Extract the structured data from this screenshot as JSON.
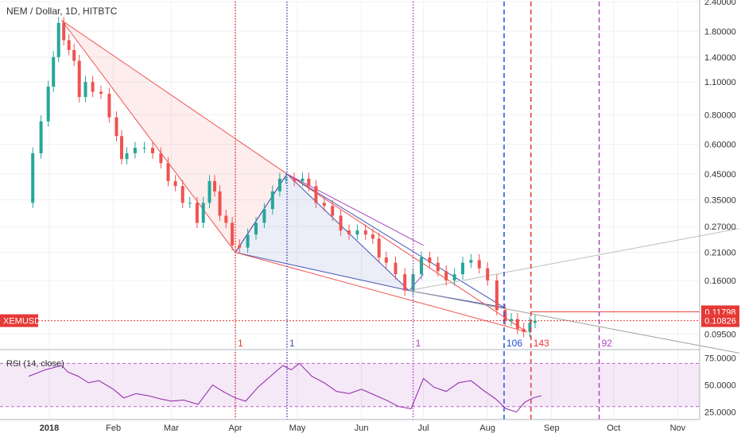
{
  "chart_data": {
    "type": "candlestick",
    "title": "NEM / Dollar, 1D, HITBTC",
    "symbol_tag": "XEMUSD",
    "scale": "log",
    "price_axis": {
      "ticks": [
        "2.40000",
        "1.80000",
        "1.40000",
        "1.10000",
        "0.80000",
        "0.60000",
        "0.45000",
        "0.35000",
        "0.27000",
        "0.21000",
        "0.16000",
        "0.09500"
      ],
      "ylim": [
        0.083,
        2.4
      ]
    },
    "time_axis": {
      "ticks": [
        "2018",
        "Feb",
        "Mar",
        "Apr",
        "May",
        "Jun",
        "Jul",
        "Aug",
        "Sep",
        "Oct",
        "Nov"
      ]
    },
    "price_labels": [
      {
        "value": 0.11798,
        "text": "0.11798",
        "color": "#e53935"
      },
      {
        "value": 0.10826,
        "text": "0.10826",
        "color": "#e53935"
      }
    ],
    "price_path": [
      [
        "2017-12-22",
        0.34
      ],
      [
        "2017-12-26",
        0.55
      ],
      [
        "2017-12-30",
        0.75
      ],
      [
        "2018-01-02",
        1.05
      ],
      [
        "2018-01-04",
        1.4
      ],
      [
        "2018-01-07",
        1.95
      ],
      [
        "2018-01-09",
        1.65
      ],
      [
        "2018-01-12",
        1.5
      ],
      [
        "2018-01-14",
        1.35
      ],
      [
        "2018-01-17",
        0.95
      ],
      [
        "2018-01-20",
        1.1
      ],
      [
        "2018-01-24",
        1.0
      ],
      [
        "2018-01-28",
        0.98
      ],
      [
        "2018-02-01",
        0.78
      ],
      [
        "2018-02-04",
        0.65
      ],
      [
        "2018-02-06",
        0.52
      ],
      [
        "2018-02-09",
        0.55
      ],
      [
        "2018-02-14",
        0.58
      ],
      [
        "2018-02-18",
        0.58
      ],
      [
        "2018-02-22",
        0.55
      ],
      [
        "2018-02-26",
        0.5
      ],
      [
        "2018-03-01",
        0.42
      ],
      [
        "2018-03-05",
        0.4
      ],
      [
        "2018-03-08",
        0.34
      ],
      [
        "2018-03-12",
        0.34
      ],
      [
        "2018-03-15",
        0.28
      ],
      [
        "2018-03-18",
        0.34
      ],
      [
        "2018-03-21",
        0.42
      ],
      [
        "2018-03-23",
        0.38
      ],
      [
        "2018-03-26",
        0.3
      ],
      [
        "2018-03-29",
        0.28
      ],
      [
        "2018-04-01",
        0.225
      ],
      [
        "2018-04-05",
        0.22
      ],
      [
        "2018-04-09",
        0.25
      ],
      [
        "2018-04-13",
        0.28
      ],
      [
        "2018-04-17",
        0.32
      ],
      [
        "2018-04-21",
        0.38
      ],
      [
        "2018-04-24",
        0.43
      ],
      [
        "2018-04-27",
        0.43
      ],
      [
        "2018-05-02",
        0.42
      ],
      [
        "2018-05-05",
        0.43
      ],
      [
        "2018-05-08",
        0.4
      ],
      [
        "2018-05-12",
        0.34
      ],
      [
        "2018-05-16",
        0.33
      ],
      [
        "2018-05-20",
        0.3
      ],
      [
        "2018-05-24",
        0.26
      ],
      [
        "2018-05-28",
        0.25
      ],
      [
        "2018-06-01",
        0.26
      ],
      [
        "2018-06-05",
        0.25
      ],
      [
        "2018-06-08",
        0.24
      ],
      [
        "2018-06-11",
        0.2
      ],
      [
        "2018-06-15",
        0.19
      ],
      [
        "2018-06-20",
        0.17
      ],
      [
        "2018-06-24",
        0.145
      ],
      [
        "2018-06-28",
        0.17
      ],
      [
        "2018-07-02",
        0.2
      ],
      [
        "2018-07-06",
        0.19
      ],
      [
        "2018-07-10",
        0.175
      ],
      [
        "2018-07-14",
        0.16
      ],
      [
        "2018-07-18",
        0.17
      ],
      [
        "2018-07-22",
        0.19
      ],
      [
        "2018-07-26",
        0.195
      ],
      [
        "2018-07-30",
        0.18
      ],
      [
        "2018-08-03",
        0.16
      ],
      [
        "2018-08-08",
        0.12
      ],
      [
        "2018-08-11",
        0.108
      ],
      [
        "2018-08-14",
        0.11
      ],
      [
        "2018-08-17",
        0.1
      ],
      [
        "2018-08-20",
        0.097
      ],
      [
        "2018-08-23",
        0.106
      ],
      [
        "2018-08-25",
        0.108
      ]
    ],
    "rsi": {
      "label": "RSI (14, close)",
      "ticks": [
        "75.0000",
        "50.0000",
        "25.0000"
      ],
      "ylim": [
        18,
        82
      ],
      "band": [
        30,
        70
      ],
      "values": [
        [
          "2017-12-22",
          58
        ],
        [
          "2017-12-30",
          64
        ],
        [
          "2018-01-07",
          68
        ],
        [
          "2018-01-10",
          62
        ],
        [
          "2018-01-15",
          58
        ],
        [
          "2018-01-20",
          52
        ],
        [
          "2018-01-25",
          54
        ],
        [
          "2018-02-01",
          46
        ],
        [
          "2018-02-06",
          38
        ],
        [
          "2018-02-12",
          42
        ],
        [
          "2018-02-18",
          40
        ],
        [
          "2018-02-24",
          37
        ],
        [
          "2018-03-01",
          35
        ],
        [
          "2018-03-07",
          36
        ],
        [
          "2018-03-14",
          32
        ],
        [
          "2018-03-21",
          50
        ],
        [
          "2018-03-26",
          44
        ],
        [
          "2018-04-01",
          38
        ],
        [
          "2018-04-06",
          35
        ],
        [
          "2018-04-12",
          48
        ],
        [
          "2018-04-18",
          58
        ],
        [
          "2018-04-24",
          68
        ],
        [
          "2018-04-28",
          64
        ],
        [
          "2018-05-02",
          70
        ],
        [
          "2018-05-08",
          58
        ],
        [
          "2018-05-14",
          52
        ],
        [
          "2018-05-20",
          44
        ],
        [
          "2018-05-26",
          42
        ],
        [
          "2018-06-01",
          46
        ],
        [
          "2018-06-07",
          41
        ],
        [
          "2018-06-13",
          36
        ],
        [
          "2018-06-19",
          30
        ],
        [
          "2018-06-25",
          28
        ],
        [
          "2018-07-01",
          56
        ],
        [
          "2018-07-06",
          48
        ],
        [
          "2018-07-12",
          44
        ],
        [
          "2018-07-18",
          52
        ],
        [
          "2018-07-24",
          54
        ],
        [
          "2018-07-30",
          45
        ],
        [
          "2018-08-05",
          37
        ],
        [
          "2018-08-10",
          28
        ],
        [
          "2018-08-15",
          25
        ],
        [
          "2018-08-19",
          34
        ],
        [
          "2018-08-23",
          38
        ],
        [
          "2018-08-27",
          40
        ]
      ]
    },
    "vertical_markers": [
      {
        "date": "2018-04-01",
        "label": "1",
        "color": "#e53935",
        "style": "dotted"
      },
      {
        "date": "2018-04-26",
        "label": "1",
        "color": "#3f51b5",
        "style": "dotted"
      },
      {
        "date": "2018-06-26",
        "label": "1",
        "color": "#ab47bc",
        "style": "dotted"
      },
      {
        "date": "2018-08-09",
        "label": "106",
        "color": "#1e4fd8",
        "style": "dashed"
      },
      {
        "date": "2018-08-22",
        "label": "143",
        "color": "#e53935",
        "style": "dashed"
      },
      {
        "date": "2018-09-24",
        "label": "92",
        "color": "#ab47bc",
        "style": "dashed"
      }
    ]
  }
}
